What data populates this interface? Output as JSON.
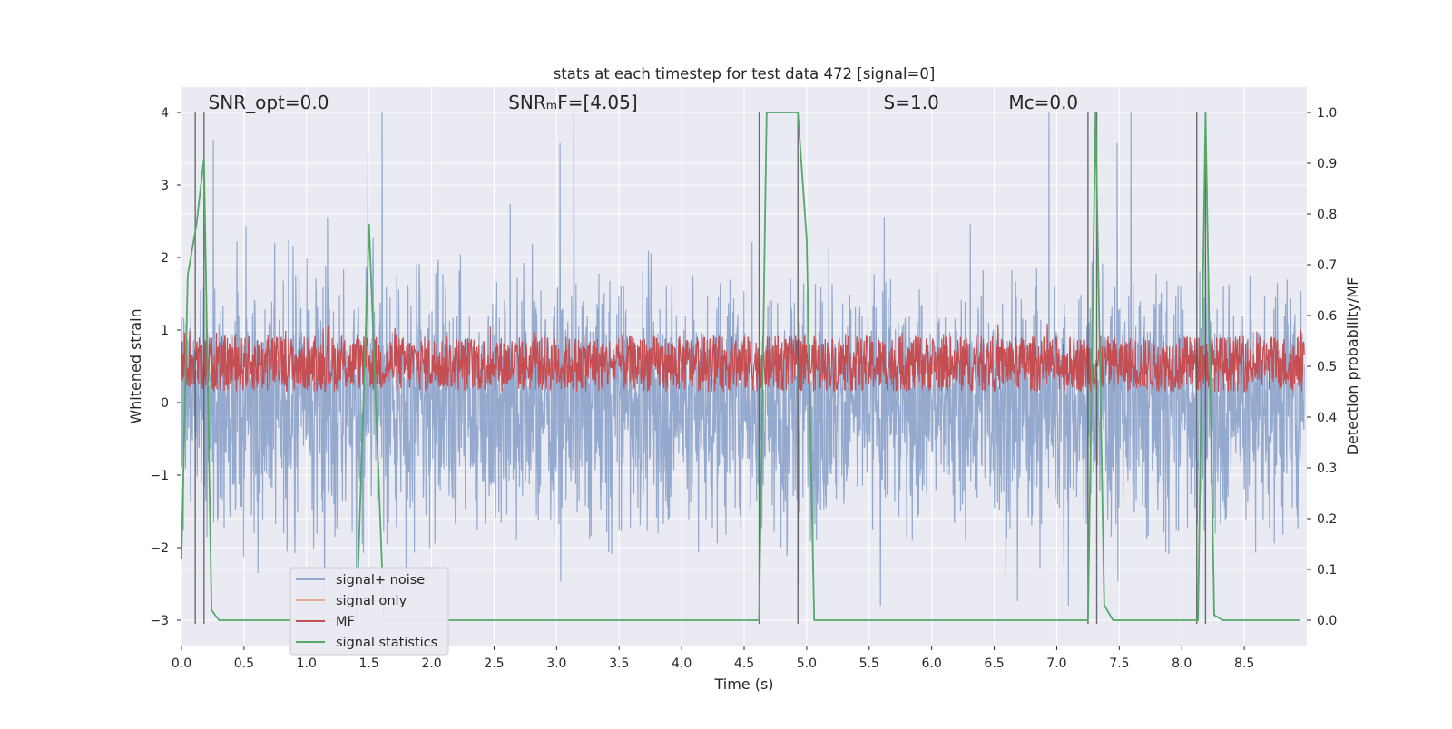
{
  "chart_data": {
    "type": "line",
    "title": "stats at each timestep for test data 472 [signal=0]",
    "xlabel": "Time (s)",
    "ylabel_left": "Whitened strain",
    "ylabel_right": "Detection probability/MF",
    "xlim": [
      0.0,
      9.0
    ],
    "ylim_left": [
      -3.35,
      4.35
    ],
    "ylim_right": [
      -0.05,
      1.05
    ],
    "x_ticks": [
      "0.0",
      "0.5",
      "1.0",
      "1.5",
      "2.0",
      "2.5",
      "3.0",
      "3.5",
      "4.0",
      "4.5",
      "5.0",
      "5.5",
      "6.0",
      "6.5",
      "7.0",
      "7.5",
      "8.0",
      "8.5"
    ],
    "y_left_ticks": [
      "4",
      "3",
      "2",
      "1",
      "0",
      "−1",
      "−2",
      "−3"
    ],
    "y_right_ticks": [
      "1.0",
      "0.9",
      "0.8",
      "0.7",
      "0.6",
      "0.5",
      "0.4",
      "0.3",
      "0.2",
      "0.1",
      "0.0"
    ],
    "grid": true,
    "legend_position": "lower-left",
    "annotations": [
      {
        "text": "SNR_opt=0.0",
        "x": 0.2,
        "y": 4.1
      },
      {
        "text": "SNRₘF=[4.05]",
        "x": 2.6,
        "y": 4.1
      },
      {
        "text": "S=1.0",
        "x": 5.6,
        "y": 4.1
      },
      {
        "text": "Mᴄ=0.0",
        "x": 6.6,
        "y": 4.1
      }
    ],
    "series": [
      {
        "name": "signal+ noise",
        "color": "#4c72b0",
        "axis": "left",
        "style": "noise",
        "description_range": [
          -2.8,
          4.0
        ]
      },
      {
        "name": "signal only",
        "color": "#dd8452",
        "axis": "left",
        "style": "flat",
        "values_constant": 0.0
      },
      {
        "name": "MF",
        "color": "#c44e52",
        "axis": "right",
        "style": "band",
        "range": [
          0.45,
          0.56
        ]
      },
      {
        "name": "signal statistics",
        "color": "#55a868",
        "axis": "right",
        "x": [
          0.0,
          0.05,
          0.12,
          0.18,
          0.24,
          0.3,
          1.4,
          1.5,
          1.62,
          4.62,
          4.68,
          4.93,
          5.0,
          5.06,
          7.25,
          7.31,
          7.38,
          7.45,
          8.13,
          8.19,
          8.26,
          8.33,
          8.95
        ],
        "y": [
          0.12,
          0.68,
          0.78,
          0.91,
          0.02,
          0.0,
          0.0,
          0.78,
          0.0,
          0.0,
          1.0,
          1.0,
          0.75,
          0.0,
          0.0,
          1.0,
          0.03,
          0.0,
          0.0,
          1.0,
          0.01,
          0.0,
          0.0
        ]
      }
    ],
    "vlines": [
      0.11,
      0.18,
      4.62,
      4.93,
      7.25,
      7.32,
      8.12,
      8.19
    ]
  }
}
